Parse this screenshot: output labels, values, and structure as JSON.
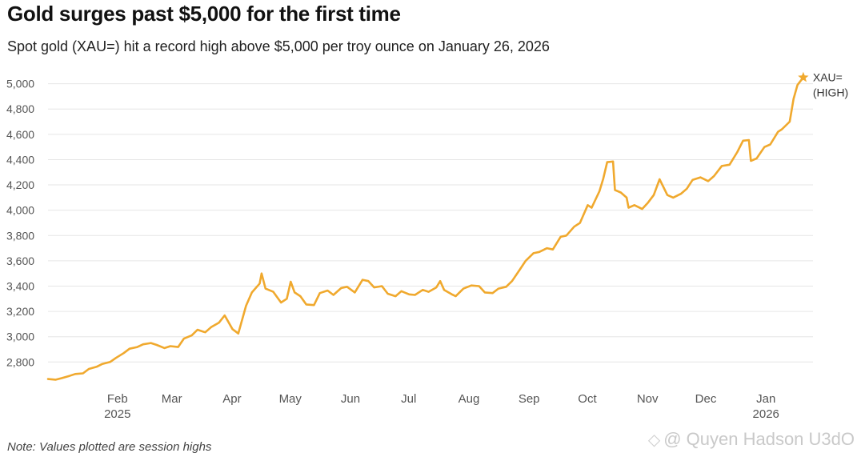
{
  "title": "Gold surges past $5,000 for the first time",
  "subtitle": "Spot gold (XAU=) hit a record high above $5,000 per troy ounce on January 26, 2026",
  "note": "Note: Values plotted are session highs",
  "watermark": {
    "icon": "binance-logo-icon",
    "text": "@ Quyen Hadson U3dO"
  },
  "colors": {
    "line": "#f0a92e",
    "grid": "#e6e6e6",
    "tick_text": "#555555",
    "star": "#f0a92e"
  },
  "chart_data": {
    "type": "line",
    "title": "Gold surges past $5,000 for the first time",
    "subtitle": "Spot gold (XAU=) hit a record high above $5,000 per troy ounce on January 26, 2026",
    "xlabel": "",
    "ylabel": "",
    "ylim": [
      2650,
      5080
    ],
    "xlim": [
      "2025-01-02",
      "2026-01-31"
    ],
    "y_ticks": [
      2800,
      3000,
      3200,
      3400,
      3600,
      3800,
      4000,
      4200,
      4400,
      4600,
      4800,
      5000
    ],
    "y_tick_labels": [
      "2,800",
      "3,000",
      "3,200",
      "3,400",
      "3,600",
      "3,800",
      "4,000",
      "4,200",
      "4,400",
      "4,600",
      "4,800",
      "5,000"
    ],
    "x_ticks": [
      {
        "date": "2025-02-01",
        "label": "Feb",
        "year": "2025"
      },
      {
        "date": "2025-03-01",
        "label": "Mar",
        "year": ""
      },
      {
        "date": "2025-04-01",
        "label": "Apr",
        "year": ""
      },
      {
        "date": "2025-05-01",
        "label": "May",
        "year": ""
      },
      {
        "date": "2025-06-01",
        "label": "Jun",
        "year": ""
      },
      {
        "date": "2025-07-01",
        "label": "Jul",
        "year": ""
      },
      {
        "date": "2025-08-01",
        "label": "Aug",
        "year": ""
      },
      {
        "date": "2025-09-01",
        "label": "Sep",
        "year": ""
      },
      {
        "date": "2025-10-01",
        "label": "Oct",
        "year": ""
      },
      {
        "date": "2025-11-01",
        "label": "Nov",
        "year": ""
      },
      {
        "date": "2025-12-01",
        "label": "Dec",
        "year": ""
      },
      {
        "date": "2026-01-01",
        "label": "Jan",
        "year": "2026"
      }
    ],
    "grid": true,
    "series": [
      {
        "name": "XAU= (HIGH)",
        "label_lines": [
          "XAU=",
          "(HIGH)"
        ],
        "points": [
          [
            "2025-01-02",
            2665
          ],
          [
            "2025-01-06",
            2660
          ],
          [
            "2025-01-09",
            2672
          ],
          [
            "2025-01-13",
            2690
          ],
          [
            "2025-01-16",
            2705
          ],
          [
            "2025-01-20",
            2710
          ],
          [
            "2025-01-23",
            2745
          ],
          [
            "2025-01-27",
            2762
          ],
          [
            "2025-01-30",
            2785
          ],
          [
            "2025-02-03",
            2800
          ],
          [
            "2025-02-06",
            2832
          ],
          [
            "2025-02-10",
            2870
          ],
          [
            "2025-02-13",
            2905
          ],
          [
            "2025-02-17",
            2918
          ],
          [
            "2025-02-20",
            2940
          ],
          [
            "2025-02-24",
            2950
          ],
          [
            "2025-02-27",
            2935
          ],
          [
            "2025-03-03",
            2910
          ],
          [
            "2025-03-06",
            2925
          ],
          [
            "2025-03-10",
            2918
          ],
          [
            "2025-03-13",
            2985
          ],
          [
            "2025-03-17",
            3010
          ],
          [
            "2025-03-20",
            3055
          ],
          [
            "2025-03-24",
            3035
          ],
          [
            "2025-03-27",
            3075
          ],
          [
            "2025-03-31",
            3110
          ],
          [
            "2025-04-03",
            3168
          ],
          [
            "2025-04-07",
            3060
          ],
          [
            "2025-04-10",
            3025
          ],
          [
            "2025-04-14",
            3245
          ],
          [
            "2025-04-17",
            3350
          ],
          [
            "2025-04-21",
            3420
          ],
          [
            "2025-04-22",
            3500
          ],
          [
            "2025-04-24",
            3380
          ],
          [
            "2025-04-28",
            3355
          ],
          [
            "2025-05-02",
            3270
          ],
          [
            "2025-05-05",
            3300
          ],
          [
            "2025-05-07",
            3435
          ],
          [
            "2025-05-09",
            3350
          ],
          [
            "2025-05-12",
            3320
          ],
          [
            "2025-05-15",
            3255
          ],
          [
            "2025-05-19",
            3250
          ],
          [
            "2025-05-22",
            3345
          ],
          [
            "2025-05-26",
            3365
          ],
          [
            "2025-05-29",
            3330
          ],
          [
            "2025-06-02",
            3385
          ],
          [
            "2025-06-05",
            3395
          ],
          [
            "2025-06-09",
            3350
          ],
          [
            "2025-06-13",
            3450
          ],
          [
            "2025-06-16",
            3440
          ],
          [
            "2025-06-19",
            3390
          ],
          [
            "2025-06-23",
            3400
          ],
          [
            "2025-06-26",
            3340
          ],
          [
            "2025-06-30",
            3320
          ],
          [
            "2025-07-03",
            3360
          ],
          [
            "2025-07-07",
            3335
          ],
          [
            "2025-07-10",
            3330
          ],
          [
            "2025-07-14",
            3370
          ],
          [
            "2025-07-17",
            3355
          ],
          [
            "2025-07-21",
            3390
          ],
          [
            "2025-07-23",
            3440
          ],
          [
            "2025-07-25",
            3370
          ],
          [
            "2025-07-29",
            3335
          ],
          [
            "2025-07-31",
            3320
          ],
          [
            "2025-08-04",
            3380
          ],
          [
            "2025-08-08",
            3405
          ],
          [
            "2025-08-12",
            3400
          ],
          [
            "2025-08-15",
            3350
          ],
          [
            "2025-08-19",
            3345
          ],
          [
            "2025-08-22",
            3380
          ],
          [
            "2025-08-26",
            3395
          ],
          [
            "2025-08-29",
            3440
          ],
          [
            "2025-09-02",
            3530
          ],
          [
            "2025-09-05",
            3600
          ],
          [
            "2025-09-09",
            3660
          ],
          [
            "2025-09-12",
            3670
          ],
          [
            "2025-09-16",
            3700
          ],
          [
            "2025-09-19",
            3690
          ],
          [
            "2025-09-23",
            3790
          ],
          [
            "2025-09-26",
            3800
          ],
          [
            "2025-09-30",
            3870
          ],
          [
            "2025-10-03",
            3900
          ],
          [
            "2025-10-07",
            4040
          ],
          [
            "2025-10-09",
            4020
          ],
          [
            "2025-10-13",
            4150
          ],
          [
            "2025-10-15",
            4250
          ],
          [
            "2025-10-17",
            4380
          ],
          [
            "2025-10-20",
            4385
          ],
          [
            "2025-10-21",
            4160
          ],
          [
            "2025-10-24",
            4140
          ],
          [
            "2025-10-27",
            4100
          ],
          [
            "2025-10-28",
            4020
          ],
          [
            "2025-10-31",
            4040
          ],
          [
            "2025-11-04",
            4010
          ],
          [
            "2025-11-07",
            4060
          ],
          [
            "2025-11-10",
            4120
          ],
          [
            "2025-11-13",
            4245
          ],
          [
            "2025-11-17",
            4120
          ],
          [
            "2025-11-20",
            4100
          ],
          [
            "2025-11-24",
            4130
          ],
          [
            "2025-11-27",
            4170
          ],
          [
            "2025-11-30",
            4240
          ],
          [
            "2025-12-04",
            4260
          ],
          [
            "2025-12-08",
            4230
          ],
          [
            "2025-12-11",
            4270
          ],
          [
            "2025-12-15",
            4350
          ],
          [
            "2025-12-19",
            4360
          ],
          [
            "2025-12-23",
            4460
          ],
          [
            "2025-12-26",
            4550
          ],
          [
            "2025-12-29",
            4555
          ],
          [
            "2025-12-30",
            4390
          ],
          [
            "2026-01-02",
            4410
          ],
          [
            "2026-01-06",
            4500
          ],
          [
            "2026-01-09",
            4520
          ],
          [
            "2026-01-13",
            4620
          ],
          [
            "2026-01-15",
            4640
          ],
          [
            "2026-01-19",
            4700
          ],
          [
            "2026-01-21",
            4880
          ],
          [
            "2026-01-23",
            4990
          ],
          [
            "2026-01-26",
            5050
          ]
        ]
      }
    ],
    "annotations": [
      {
        "type": "star-marker",
        "date": "2026-01-26",
        "value": 5050
      }
    ],
    "legend": "direct-label-right"
  }
}
